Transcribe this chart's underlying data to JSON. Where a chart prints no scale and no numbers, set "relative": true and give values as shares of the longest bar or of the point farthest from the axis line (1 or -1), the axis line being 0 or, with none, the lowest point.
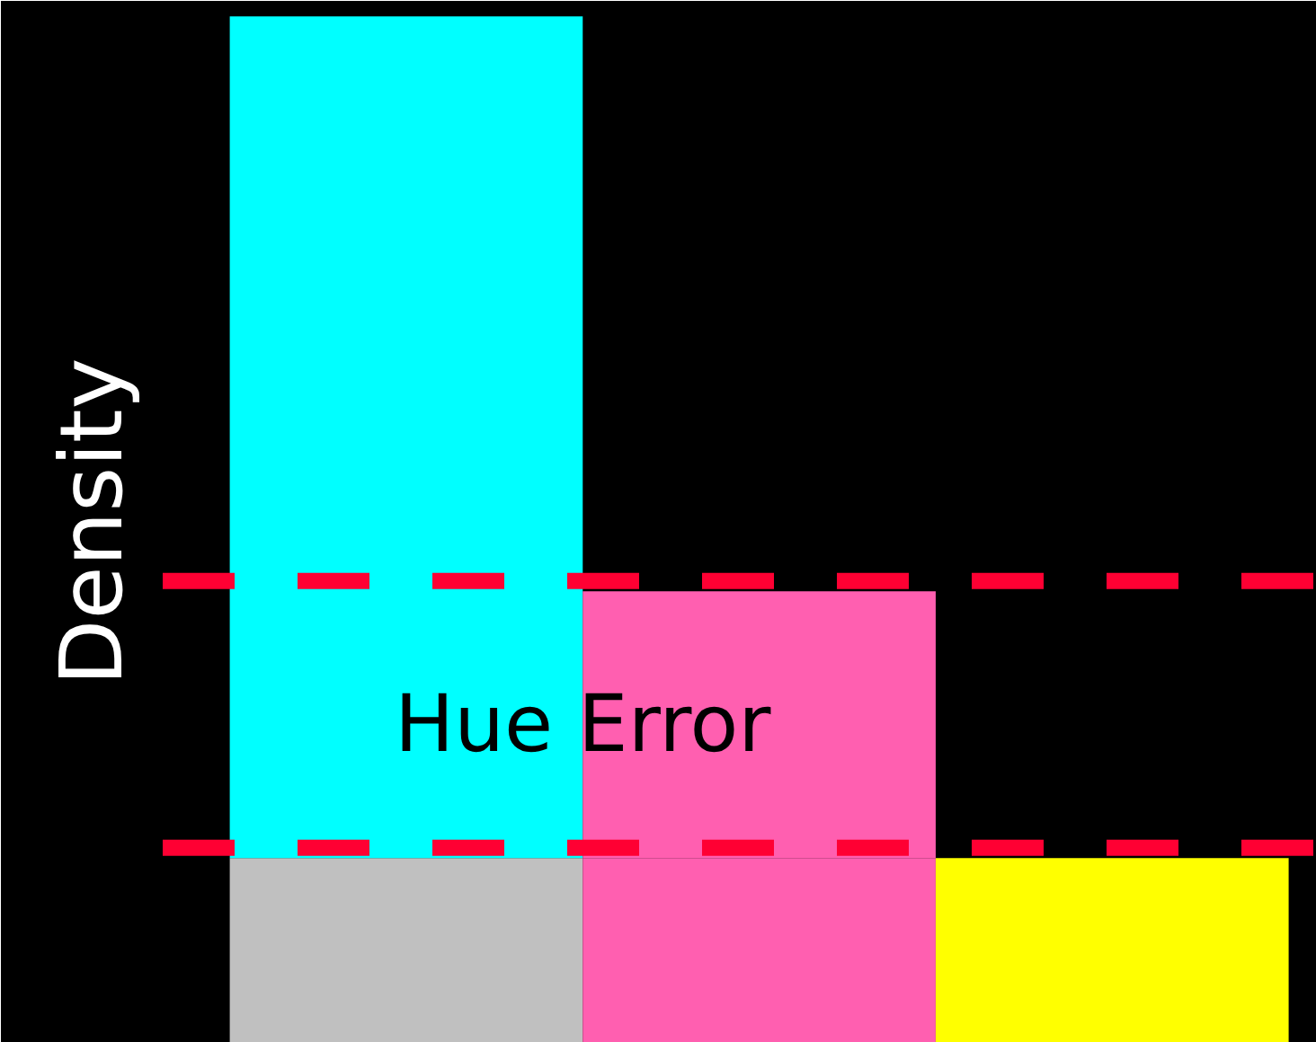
{
  "chart_data": {
    "type": "bar",
    "relative": true,
    "stacked": true,
    "ylabel": "Density",
    "categories": [
      null,
      null,
      null
    ],
    "series": [
      {
        "colors": [
          "#c0c0c0",
          "#ff5fb0",
          "#ffff00"
        ],
        "values": [
          0.18,
          0.18,
          0.18
        ]
      },
      {
        "colors": [
          "#00ffff",
          "#ff5fb0",
          "#000000"
        ],
        "values": [
          0.82,
          0.26,
          0
        ]
      }
    ],
    "ref_lines": [
      {
        "axis": "y",
        "value": 0.45,
        "color": "#ff0033",
        "line_style": "dashed"
      },
      {
        "axis": "y",
        "value": 0.19,
        "color": "#ff0033",
        "line_style": "dashed"
      }
    ],
    "annotations": [
      "Hue Error"
    ],
    "grid": false
  }
}
